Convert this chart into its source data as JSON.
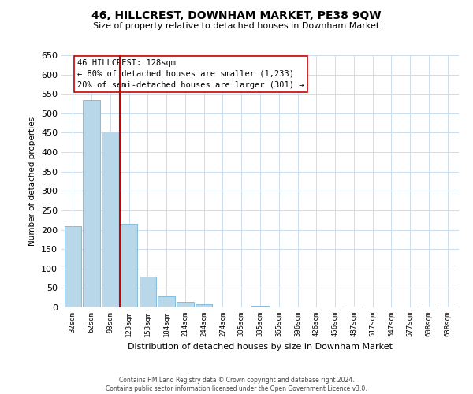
{
  "title": "46, HILLCREST, DOWNHAM MARKET, PE38 9QW",
  "subtitle": "Size of property relative to detached houses in Downham Market",
  "xlabel": "Distribution of detached houses by size in Downham Market",
  "ylabel": "Number of detached properties",
  "footer_line1": "Contains HM Land Registry data © Crown copyright and database right 2024.",
  "footer_line2": "Contains public sector information licensed under the Open Government Licence v3.0.",
  "bar_labels": [
    "32sqm",
    "62sqm",
    "93sqm",
    "123sqm",
    "153sqm",
    "184sqm",
    "214sqm",
    "244sqm",
    "274sqm",
    "305sqm",
    "335sqm",
    "365sqm",
    "396sqm",
    "426sqm",
    "456sqm",
    "487sqm",
    "517sqm",
    "547sqm",
    "577sqm",
    "608sqm",
    "638sqm"
  ],
  "bar_values": [
    210,
    535,
    452,
    215,
    80,
    28,
    15,
    8,
    0,
    0,
    4,
    0,
    0,
    0,
    0,
    2,
    0,
    0,
    0,
    2,
    2
  ],
  "bar_color": "#b8d8ea",
  "bar_edge_color": "#7ab5d4",
  "reference_line_color": "#cc0000",
  "annotation_text_line1": "46 HILLCREST: 128sqm",
  "annotation_text_line2": "← 80% of detached houses are smaller (1,233)",
  "annotation_text_line3": "20% of semi-detached houses are larger (301) →",
  "annotation_box_color": "#ffffff",
  "annotation_box_edge_color": "#cc0000",
  "ylim": [
    0,
    650
  ],
  "yticks": [
    0,
    50,
    100,
    150,
    200,
    250,
    300,
    350,
    400,
    450,
    500,
    550,
    600,
    650
  ],
  "background_color": "#ffffff",
  "grid_color": "#ccddee"
}
